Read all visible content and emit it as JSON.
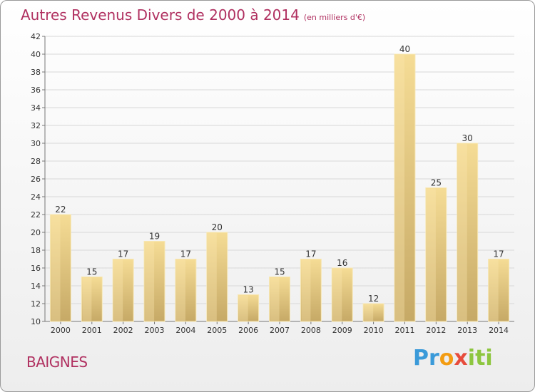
{
  "chart_data": {
    "type": "bar",
    "title": "Autres Revenus Divers de 2000 à 2014",
    "subtitle": "(en milliers d'€)",
    "categories": [
      "2000",
      "2001",
      "2002",
      "2003",
      "2004",
      "2005",
      "2006",
      "2007",
      "2008",
      "2009",
      "2010",
      "2011",
      "2012",
      "2013",
      "2014"
    ],
    "values": [
      22,
      15,
      17,
      19,
      17,
      20,
      13,
      15,
      17,
      16,
      12,
      40,
      25,
      30,
      17
    ],
    "ylim": [
      10,
      42
    ],
    "yticks": [
      10,
      12,
      14,
      16,
      18,
      20,
      22,
      24,
      26,
      28,
      30,
      32,
      34,
      36,
      38,
      40,
      42
    ],
    "grid": true,
    "legend": "none",
    "colors": {
      "bar_light": "#f3db96",
      "bar_dark": "#c9ad6a",
      "grid": "#d8d8d8"
    }
  },
  "location": "BAIGNES",
  "logo": {
    "text": "Proxiti",
    "parts": [
      "Pr",
      "o",
      "x",
      "iti"
    ]
  }
}
